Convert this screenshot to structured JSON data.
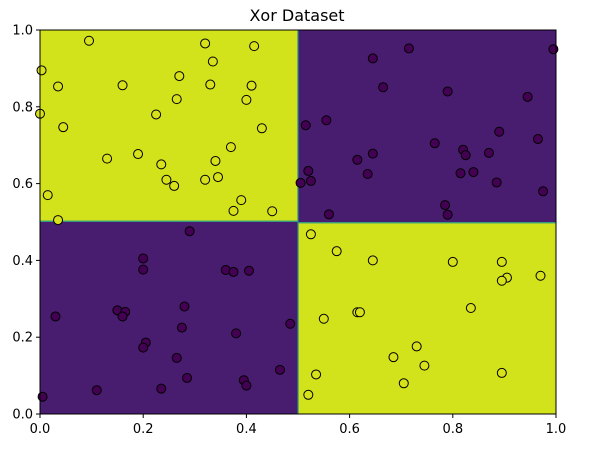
{
  "chart_data": {
    "type": "scatter",
    "title": "Xor Dataset",
    "xlabel": "",
    "ylabel": "",
    "xlim": [
      0.0,
      1.0
    ],
    "ylim": [
      0.0,
      1.0
    ],
    "x_ticks": [
      "0.0",
      "0.2",
      "0.4",
      "0.6",
      "0.8",
      "1.0"
    ],
    "y_ticks": [
      "0.0",
      "0.2",
      "0.4",
      "0.6",
      "0.8",
      "1.0"
    ],
    "grid": false,
    "legend": "none",
    "colors": {
      "class_0": "#440154",
      "class_1": "#d7e21a",
      "region_0": "#481c6e",
      "region_1": "#d2e21b",
      "boundary": "#21908d"
    },
    "regions": [
      {
        "class": 1,
        "x": [
          0.0,
          0.5
        ],
        "y": [
          0.5,
          1.0
        ]
      },
      {
        "class": 0,
        "x": [
          0.5,
          1.0
        ],
        "y": [
          0.5,
          1.0
        ]
      },
      {
        "class": 0,
        "x": [
          0.0,
          0.5
        ],
        "y": [
          0.0,
          0.5
        ]
      },
      {
        "class": 1,
        "x": [
          0.5,
          1.0
        ],
        "y": [
          0.0,
          0.5
        ]
      }
    ],
    "points_class_1": [
      [
        0.095,
        0.972
      ],
      [
        0.003,
        0.895
      ],
      [
        0.035,
        0.853
      ],
      [
        0.0,
        0.782
      ],
      [
        0.045,
        0.747
      ],
      [
        0.16,
        0.856
      ],
      [
        0.13,
        0.665
      ],
      [
        0.19,
        0.677
      ],
      [
        0.225,
        0.78
      ],
      [
        0.265,
        0.82
      ],
      [
        0.27,
        0.88
      ],
      [
        0.32,
        0.965
      ],
      [
        0.33,
        0.858
      ],
      [
        0.335,
        0.918
      ],
      [
        0.415,
        0.958
      ],
      [
        0.41,
        0.855
      ],
      [
        0.4,
        0.818
      ],
      [
        0.43,
        0.744
      ],
      [
        0.37,
        0.695
      ],
      [
        0.34,
        0.659
      ],
      [
        0.235,
        0.65
      ],
      [
        0.245,
        0.61
      ],
      [
        0.26,
        0.594
      ],
      [
        0.32,
        0.61
      ],
      [
        0.345,
        0.617
      ],
      [
        0.39,
        0.557
      ],
      [
        0.375,
        0.529
      ],
      [
        0.45,
        0.528
      ],
      [
        0.015,
        0.57
      ],
      [
        0.035,
        0.505
      ],
      [
        0.525,
        0.468
      ],
      [
        0.575,
        0.424
      ],
      [
        0.645,
        0.4
      ],
      [
        0.8,
        0.396
      ],
      [
        0.895,
        0.396
      ],
      [
        0.905,
        0.355
      ],
      [
        0.895,
        0.347
      ],
      [
        0.97,
        0.36
      ],
      [
        0.835,
        0.276
      ],
      [
        0.615,
        0.265
      ],
      [
        0.62,
        0.265
      ],
      [
        0.55,
        0.248
      ],
      [
        0.73,
        0.176
      ],
      [
        0.685,
        0.148
      ],
      [
        0.745,
        0.126
      ],
      [
        0.535,
        0.103
      ],
      [
        0.705,
        0.08
      ],
      [
        0.895,
        0.107
      ],
      [
        0.52,
        0.05
      ]
    ],
    "points_class_0": [
      [
        0.515,
        0.752
      ],
      [
        0.555,
        0.765
      ],
      [
        0.645,
        0.926
      ],
      [
        0.665,
        0.851
      ],
      [
        0.715,
        0.952
      ],
      [
        0.79,
        0.84
      ],
      [
        0.645,
        0.678
      ],
      [
        0.615,
        0.662
      ],
      [
        0.635,
        0.625
      ],
      [
        0.765,
        0.705
      ],
      [
        0.82,
        0.688
      ],
      [
        0.825,
        0.674
      ],
      [
        0.84,
        0.63
      ],
      [
        0.815,
        0.627
      ],
      [
        0.87,
        0.68
      ],
      [
        0.89,
        0.735
      ],
      [
        0.945,
        0.826
      ],
      [
        0.965,
        0.716
      ],
      [
        0.995,
        0.95
      ],
      [
        0.505,
        0.602
      ],
      [
        0.52,
        0.633
      ],
      [
        0.525,
        0.607
      ],
      [
        0.885,
        0.603
      ],
      [
        0.975,
        0.58
      ],
      [
        0.785,
        0.544
      ],
      [
        0.79,
        0.519
      ],
      [
        0.56,
        0.52
      ],
      [
        0.29,
        0.476
      ],
      [
        0.2,
        0.405
      ],
      [
        0.2,
        0.376
      ],
      [
        0.36,
        0.375
      ],
      [
        0.375,
        0.37
      ],
      [
        0.405,
        0.373
      ],
      [
        0.15,
        0.27
      ],
      [
        0.165,
        0.266
      ],
      [
        0.16,
        0.254
      ],
      [
        0.28,
        0.28
      ],
      [
        0.275,
        0.225
      ],
      [
        0.03,
        0.254
      ],
      [
        0.38,
        0.21
      ],
      [
        0.205,
        0.186
      ],
      [
        0.2,
        0.173
      ],
      [
        0.265,
        0.146
      ],
      [
        0.485,
        0.235
      ],
      [
        0.465,
        0.115
      ],
      [
        0.285,
        0.094
      ],
      [
        0.395,
        0.088
      ],
      [
        0.4,
        0.074
      ],
      [
        0.235,
        0.066
      ],
      [
        0.11,
        0.062
      ],
      [
        0.005,
        0.045
      ]
    ]
  }
}
